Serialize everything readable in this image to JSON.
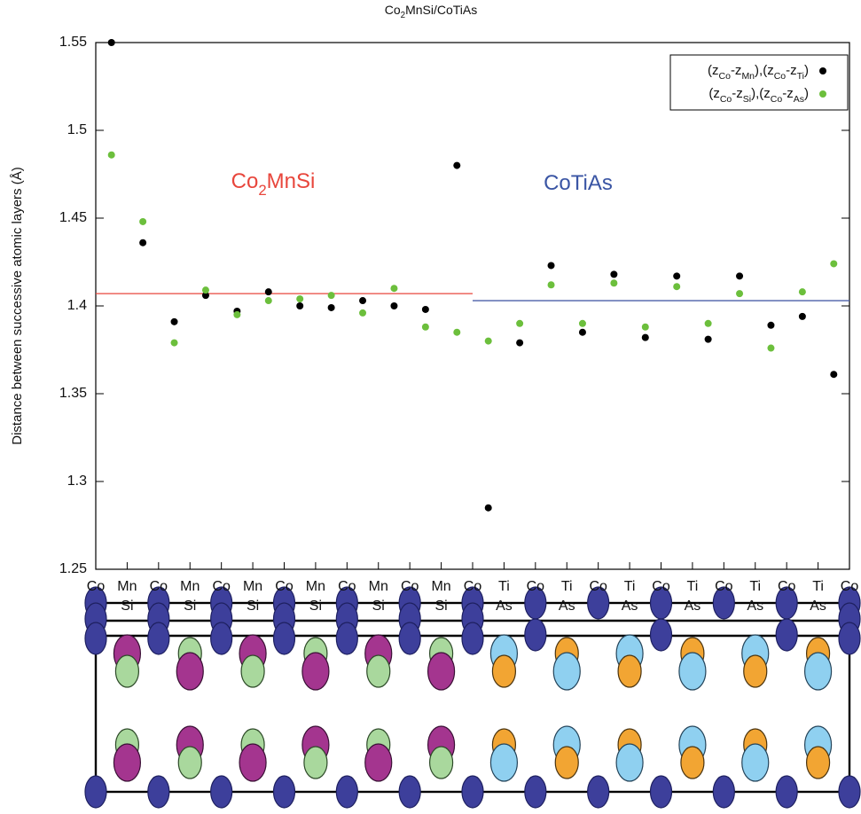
{
  "chart_data": {
    "type": "scatter",
    "title": [
      "Co",
      {
        "sub": "2"
      },
      "MnSi/CoTiAs"
    ],
    "y_label": "Distance between successive atomic layers (Å)",
    "xlim": [
      0,
      24
    ],
    "ylim": [
      1.25,
      1.55
    ],
    "yticks": [
      1.25,
      1.3,
      1.35,
      1.4,
      1.45,
      1.5,
      1.55
    ],
    "xticks": [
      {
        "value": 0,
        "label": [
          "Co"
        ]
      },
      {
        "value": 1,
        "label": [
          "Mn",
          "Si"
        ]
      },
      {
        "value": 2,
        "label": [
          "Co"
        ]
      },
      {
        "value": 3,
        "label": [
          "Mn",
          "Si"
        ]
      },
      {
        "value": 4,
        "label": [
          "Co"
        ]
      },
      {
        "value": 5,
        "label": [
          "Mn",
          "Si"
        ]
      },
      {
        "value": 6,
        "label": [
          "Co"
        ]
      },
      {
        "value": 7,
        "label": [
          "Mn",
          "Si"
        ]
      },
      {
        "value": 8,
        "label": [
          "Co"
        ]
      },
      {
        "value": 9,
        "label": [
          "Mn",
          "Si"
        ]
      },
      {
        "value": 10,
        "label": [
          "Co"
        ]
      },
      {
        "value": 11,
        "label": [
          "Mn",
          "Si"
        ]
      },
      {
        "value": 12,
        "label": [
          "Co"
        ]
      },
      {
        "value": 13,
        "label": [
          "Ti",
          "As"
        ]
      },
      {
        "value": 14,
        "label": [
          "Co"
        ]
      },
      {
        "value": 15,
        "label": [
          "Ti",
          "As"
        ]
      },
      {
        "value": 16,
        "label": [
          "Co"
        ]
      },
      {
        "value": 17,
        "label": [
          "Ti",
          "As"
        ]
      },
      {
        "value": 18,
        "label": [
          "Co"
        ]
      },
      {
        "value": 19,
        "label": [
          "Ti",
          "As"
        ]
      },
      {
        "value": 20,
        "label": [
          "Co"
        ]
      },
      {
        "value": 21,
        "label": [
          "Ti",
          "As"
        ]
      },
      {
        "value": 22,
        "label": [
          "Co"
        ]
      },
      {
        "value": 23,
        "label": [
          "Ti",
          "As"
        ]
      },
      {
        "value": 24,
        "label": [
          "Co"
        ]
      }
    ],
    "x": [
      0.5,
      1.5,
      2.5,
      3.5,
      4.5,
      5.5,
      6.5,
      7.5,
      8.5,
      9.5,
      10.5,
      11.5,
      12.5,
      13.5,
      14.5,
      15.5,
      16.5,
      17.5,
      18.5,
      19.5,
      20.5,
      21.5,
      22.5,
      23.5
    ],
    "series": [
      {
        "name": [
          "(z",
          {
            "sub": "Co"
          },
          "-z",
          {
            "sub": "Mn"
          },
          "),(z",
          {
            "sub": "Co"
          },
          "-z",
          {
            "sub": "Ti"
          },
          ")"
        ],
        "color": "#000000",
        "values": [
          1.55,
          1.436,
          1.391,
          1.406,
          1.397,
          1.408,
          1.4,
          1.399,
          1.403,
          1.4,
          1.398,
          1.48,
          1.285,
          1.379,
          1.423,
          1.385,
          1.418,
          1.382,
          1.417,
          1.381,
          1.417,
          1.389,
          1.394,
          1.361
        ]
      },
      {
        "name": [
          "(z",
          {
            "sub": "Co"
          },
          "-z",
          {
            "sub": "Si"
          },
          "),(z",
          {
            "sub": "Co"
          },
          "-z",
          {
            "sub": "As"
          },
          ")"
        ],
        "color": "#6cbf3c",
        "values": [
          1.486,
          1.448,
          1.379,
          1.409,
          1.395,
          1.403,
          1.404,
          1.406,
          1.396,
          1.41,
          1.388,
          1.385,
          1.38,
          1.39,
          1.412,
          1.39,
          1.413,
          1.388,
          1.411,
          1.39,
          1.407,
          1.376,
          1.408,
          1.424
        ]
      }
    ],
    "reference_lines": [
      {
        "y": 1.407,
        "x": [
          0,
          12
        ],
        "color": "#e8463c"
      },
      {
        "y": 1.403,
        "x": [
          12,
          24
        ],
        "color": "#4a5fa8"
      }
    ],
    "annotations": [
      {
        "text": [
          "Co",
          {
            "sub": "2"
          },
          "MnSi"
        ],
        "color": "#e8463c"
      },
      {
        "text": [
          "CoTiAs"
        ],
        "color": "#3a55a4"
      }
    ],
    "legend": "top-right"
  }
}
